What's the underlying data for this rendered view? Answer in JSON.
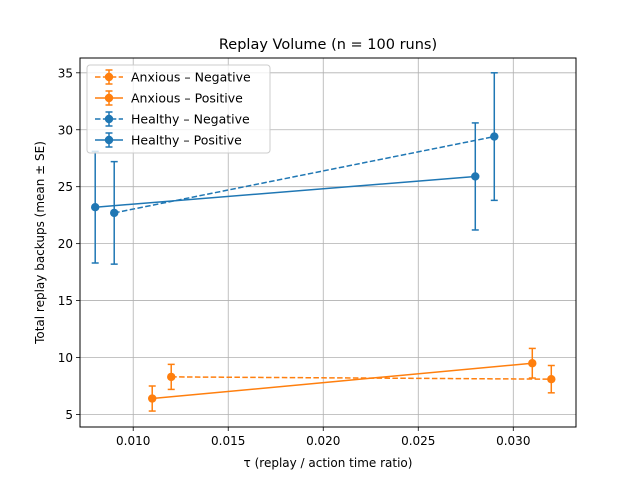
{
  "chart_data": {
    "type": "line",
    "title": "Replay Volume  (n = 100 runs)",
    "xlabel": "τ  (replay / action time ratio)",
    "ylabel": "Total replay backups   (mean ± SE)",
    "xlim": [
      0.0072,
      0.0333
    ],
    "ylim": [
      3.9,
      36.3
    ],
    "xticks": [
      0.01,
      0.015,
      0.02,
      0.025,
      0.03
    ],
    "xtick_labels": [
      "0.010",
      "0.015",
      "0.020",
      "0.025",
      "0.030"
    ],
    "yticks": [
      5,
      10,
      15,
      20,
      25,
      30,
      35
    ],
    "ytick_labels": [
      "5",
      "10",
      "15",
      "20",
      "25",
      "30",
      "35"
    ],
    "grid": true,
    "legend_position": "top-left",
    "series": [
      {
        "name": "Anxious – Negative",
        "color": "#ff7f0e",
        "linestyle": "dashed",
        "x": [
          0.012,
          0.032
        ],
        "y": [
          8.3,
          8.1
        ],
        "err": [
          1.1,
          1.2
        ]
      },
      {
        "name": "Anxious – Positive",
        "color": "#ff7f0e",
        "linestyle": "solid",
        "x": [
          0.011,
          0.031
        ],
        "y": [
          6.4,
          9.5
        ],
        "err": [
          1.1,
          1.3
        ]
      },
      {
        "name": "Healthy – Negative",
        "color": "#1f77b4",
        "linestyle": "dashed",
        "x": [
          0.009,
          0.029
        ],
        "y": [
          22.7,
          29.4
        ],
        "err": [
          4.5,
          5.6
        ]
      },
      {
        "name": "Healthy – Positive",
        "color": "#1f77b4",
        "linestyle": "solid",
        "x": [
          0.008,
          0.028
        ],
        "y": [
          23.2,
          25.9
        ],
        "err": [
          4.9,
          4.7
        ]
      }
    ]
  }
}
